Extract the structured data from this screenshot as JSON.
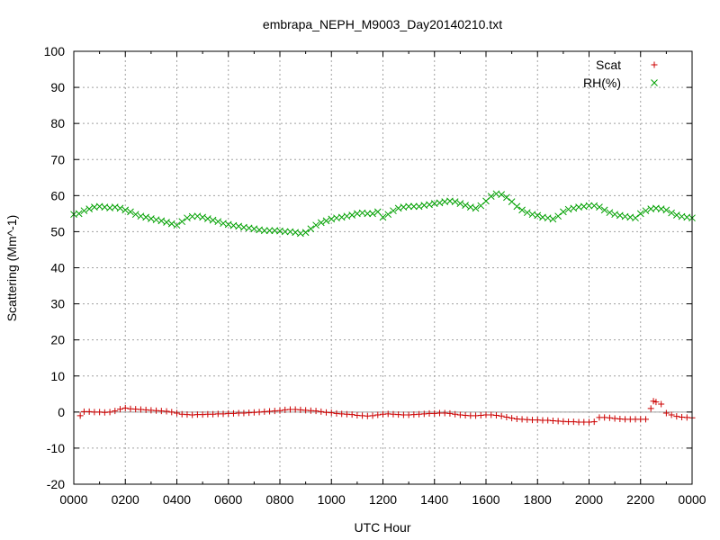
{
  "chart_data": {
    "type": "scatter",
    "title": "embrapa_NEPH_M9003_Day20140210.txt",
    "xlabel": "UTC Hour",
    "ylabel": "Scattering (Mm^-1)",
    "xlim": [
      0,
      24
    ],
    "ylim": [
      -20,
      100
    ],
    "grid": true,
    "legend_position": "top-right",
    "x_tick_labels": [
      "0000",
      "0200",
      "0400",
      "0600",
      "0800",
      "1000",
      "1200",
      "1400",
      "1600",
      "1800",
      "2000",
      "2200",
      "0000"
    ],
    "y_ticks": [
      -20,
      -10,
      0,
      10,
      20,
      30,
      40,
      50,
      60,
      70,
      80,
      90,
      100
    ],
    "series": [
      {
        "name": "Scat",
        "marker": "+",
        "color": "#cc0000",
        "points": [
          [
            0.25,
            -1.0
          ],
          [
            0.4,
            0.1
          ],
          [
            0.6,
            0.1
          ],
          [
            0.8,
            0.0
          ],
          [
            1.0,
            0.0
          ],
          [
            1.2,
            -0.1
          ],
          [
            1.4,
            0.0
          ],
          [
            1.6,
            0.3
          ],
          [
            1.8,
            0.8
          ],
          [
            2.0,
            1.1
          ],
          [
            2.2,
            0.9
          ],
          [
            2.4,
            0.8
          ],
          [
            2.6,
            0.7
          ],
          [
            2.8,
            0.6
          ],
          [
            3.0,
            0.5
          ],
          [
            3.2,
            0.4
          ],
          [
            3.4,
            0.3
          ],
          [
            3.6,
            0.2
          ],
          [
            3.8,
            0.0
          ],
          [
            4.0,
            -0.3
          ],
          [
            4.2,
            -0.6
          ],
          [
            4.4,
            -0.7
          ],
          [
            4.6,
            -0.8
          ],
          [
            4.8,
            -0.7
          ],
          [
            5.0,
            -0.7
          ],
          [
            5.2,
            -0.6
          ],
          [
            5.4,
            -0.6
          ],
          [
            5.6,
            -0.5
          ],
          [
            5.8,
            -0.5
          ],
          [
            6.0,
            -0.4
          ],
          [
            6.2,
            -0.4
          ],
          [
            6.4,
            -0.3
          ],
          [
            6.6,
            -0.3
          ],
          [
            6.8,
            -0.2
          ],
          [
            7.0,
            -0.1
          ],
          [
            7.2,
            0.0
          ],
          [
            7.4,
            0.1
          ],
          [
            7.6,
            0.2
          ],
          [
            7.8,
            0.3
          ],
          [
            8.0,
            0.4
          ],
          [
            8.2,
            0.6
          ],
          [
            8.4,
            0.7
          ],
          [
            8.6,
            0.7
          ],
          [
            8.8,
            0.6
          ],
          [
            9.0,
            0.5
          ],
          [
            9.2,
            0.4
          ],
          [
            9.4,
            0.3
          ],
          [
            9.6,
            0.1
          ],
          [
            9.8,
            -0.1
          ],
          [
            10.0,
            -0.2
          ],
          [
            10.2,
            -0.4
          ],
          [
            10.4,
            -0.5
          ],
          [
            10.6,
            -0.6
          ],
          [
            10.8,
            -0.7
          ],
          [
            11.0,
            -0.9
          ],
          [
            11.2,
            -1.0
          ],
          [
            11.4,
            -1.1
          ],
          [
            11.6,
            -1.0
          ],
          [
            11.8,
            -0.8
          ],
          [
            12.0,
            -0.6
          ],
          [
            12.2,
            -0.5
          ],
          [
            12.4,
            -0.6
          ],
          [
            12.6,
            -0.7
          ],
          [
            12.8,
            -0.8
          ],
          [
            13.0,
            -0.8
          ],
          [
            13.2,
            -0.7
          ],
          [
            13.4,
            -0.6
          ],
          [
            13.6,
            -0.5
          ],
          [
            13.8,
            -0.4
          ],
          [
            14.0,
            -0.4
          ],
          [
            14.2,
            -0.3
          ],
          [
            14.4,
            -0.3
          ],
          [
            14.6,
            -0.4
          ],
          [
            14.8,
            -0.6
          ],
          [
            15.0,
            -0.8
          ],
          [
            15.2,
            -0.9
          ],
          [
            15.4,
            -1.0
          ],
          [
            15.6,
            -1.0
          ],
          [
            15.8,
            -0.9
          ],
          [
            16.0,
            -0.8
          ],
          [
            16.2,
            -0.8
          ],
          [
            16.4,
            -0.9
          ],
          [
            16.6,
            -1.1
          ],
          [
            16.8,
            -1.4
          ],
          [
            17.0,
            -1.7
          ],
          [
            17.2,
            -1.9
          ],
          [
            17.4,
            -2.0
          ],
          [
            17.6,
            -2.1
          ],
          [
            17.8,
            -2.2
          ],
          [
            18.0,
            -2.2
          ],
          [
            18.2,
            -2.3
          ],
          [
            18.4,
            -2.3
          ],
          [
            18.6,
            -2.4
          ],
          [
            18.8,
            -2.5
          ],
          [
            19.0,
            -2.6
          ],
          [
            19.2,
            -2.7
          ],
          [
            19.4,
            -2.7
          ],
          [
            19.6,
            -2.8
          ],
          [
            19.8,
            -2.8
          ],
          [
            20.0,
            -2.8
          ],
          [
            20.2,
            -2.7
          ],
          [
            20.4,
            -1.5
          ],
          [
            20.6,
            -1.5
          ],
          [
            20.8,
            -1.6
          ],
          [
            21.0,
            -1.8
          ],
          [
            21.2,
            -1.9
          ],
          [
            21.4,
            -2.0
          ],
          [
            21.6,
            -2.0
          ],
          [
            21.8,
            -2.0
          ],
          [
            22.0,
            -2.0
          ],
          [
            22.2,
            -2.0
          ],
          [
            22.4,
            1.0
          ],
          [
            22.5,
            3.0
          ],
          [
            22.6,
            2.8
          ],
          [
            22.8,
            2.2
          ],
          [
            23.0,
            -0.3
          ],
          [
            23.2,
            -0.8
          ],
          [
            23.4,
            -1.2
          ],
          [
            23.6,
            -1.4
          ],
          [
            23.8,
            -1.5
          ],
          [
            24.0,
            -1.6
          ]
        ]
      },
      {
        "name": "RH(%)",
        "marker": "x",
        "color": "#00a000",
        "points": [
          [
            0.0,
            54.8
          ],
          [
            0.2,
            55.0
          ],
          [
            0.4,
            55.8
          ],
          [
            0.6,
            56.3
          ],
          [
            0.8,
            56.8
          ],
          [
            1.0,
            57.0
          ],
          [
            1.2,
            56.8
          ],
          [
            1.4,
            56.6
          ],
          [
            1.6,
            56.8
          ],
          [
            1.8,
            56.5
          ],
          [
            2.0,
            56.0
          ],
          [
            2.2,
            55.5
          ],
          [
            2.4,
            54.8
          ],
          [
            2.6,
            54.3
          ],
          [
            2.8,
            54.0
          ],
          [
            3.0,
            53.6
          ],
          [
            3.2,
            53.3
          ],
          [
            3.4,
            53.0
          ],
          [
            3.6,
            52.6
          ],
          [
            3.8,
            52.2
          ],
          [
            4.0,
            51.8
          ],
          [
            4.2,
            52.8
          ],
          [
            4.4,
            53.8
          ],
          [
            4.6,
            54.2
          ],
          [
            4.8,
            54.3
          ],
          [
            5.0,
            54.0
          ],
          [
            5.2,
            53.6
          ],
          [
            5.4,
            53.2
          ],
          [
            5.6,
            52.8
          ],
          [
            5.8,
            52.3
          ],
          [
            6.0,
            52.0
          ],
          [
            6.2,
            51.7
          ],
          [
            6.4,
            51.5
          ],
          [
            6.6,
            51.2
          ],
          [
            6.8,
            51.0
          ],
          [
            7.0,
            50.8
          ],
          [
            7.2,
            50.5
          ],
          [
            7.4,
            50.3
          ],
          [
            7.6,
            50.3
          ],
          [
            7.8,
            50.3
          ],
          [
            8.0,
            50.2
          ],
          [
            8.2,
            50.0
          ],
          [
            8.4,
            50.0
          ],
          [
            8.6,
            49.8
          ],
          [
            8.8,
            49.5
          ],
          [
            9.0,
            49.8
          ],
          [
            9.2,
            50.8
          ],
          [
            9.4,
            51.8
          ],
          [
            9.6,
            52.5
          ],
          [
            9.8,
            53.0
          ],
          [
            10.0,
            53.5
          ],
          [
            10.2,
            53.8
          ],
          [
            10.4,
            54.0
          ],
          [
            10.6,
            54.3
          ],
          [
            10.8,
            54.6
          ],
          [
            11.0,
            55.0
          ],
          [
            11.2,
            55.2
          ],
          [
            11.4,
            55.0
          ],
          [
            11.6,
            55.0
          ],
          [
            11.8,
            55.5
          ],
          [
            12.0,
            54.0
          ],
          [
            12.2,
            54.8
          ],
          [
            12.4,
            55.8
          ],
          [
            12.6,
            56.5
          ],
          [
            12.8,
            56.8
          ],
          [
            13.0,
            57.0
          ],
          [
            13.2,
            57.0
          ],
          [
            13.4,
            57.0
          ],
          [
            13.6,
            57.3
          ],
          [
            13.8,
            57.5
          ],
          [
            14.0,
            57.8
          ],
          [
            14.2,
            58.0
          ],
          [
            14.4,
            58.3
          ],
          [
            14.6,
            58.5
          ],
          [
            14.8,
            58.3
          ],
          [
            15.0,
            57.8
          ],
          [
            15.2,
            57.3
          ],
          [
            15.4,
            56.8
          ],
          [
            15.6,
            56.5
          ],
          [
            15.8,
            57.2
          ],
          [
            16.0,
            58.5
          ],
          [
            16.2,
            59.8
          ],
          [
            16.4,
            60.5
          ],
          [
            16.6,
            60.3
          ],
          [
            16.8,
            59.5
          ],
          [
            17.0,
            58.3
          ],
          [
            17.2,
            57.0
          ],
          [
            17.4,
            56.0
          ],
          [
            17.6,
            55.3
          ],
          [
            17.8,
            54.8
          ],
          [
            18.0,
            54.5
          ],
          [
            18.2,
            54.0
          ],
          [
            18.4,
            53.8
          ],
          [
            18.6,
            53.5
          ],
          [
            18.8,
            54.3
          ],
          [
            19.0,
            55.5
          ],
          [
            19.2,
            56.2
          ],
          [
            19.4,
            56.5
          ],
          [
            19.6,
            56.8
          ],
          [
            19.8,
            57.0
          ],
          [
            20.0,
            57.2
          ],
          [
            20.2,
            57.2
          ],
          [
            20.4,
            56.8
          ],
          [
            20.6,
            56.0
          ],
          [
            20.8,
            55.3
          ],
          [
            21.0,
            54.8
          ],
          [
            21.2,
            54.5
          ],
          [
            21.4,
            54.2
          ],
          [
            21.6,
            54.0
          ],
          [
            21.8,
            53.8
          ],
          [
            22.0,
            55.0
          ],
          [
            22.2,
            55.8
          ],
          [
            22.4,
            56.3
          ],
          [
            22.6,
            56.5
          ],
          [
            22.8,
            56.3
          ],
          [
            23.0,
            56.0
          ],
          [
            23.2,
            55.2
          ],
          [
            23.4,
            54.6
          ],
          [
            23.6,
            54.2
          ],
          [
            23.8,
            54.0
          ],
          [
            24.0,
            53.8
          ]
        ]
      }
    ],
    "reference_line_y": 0
  }
}
